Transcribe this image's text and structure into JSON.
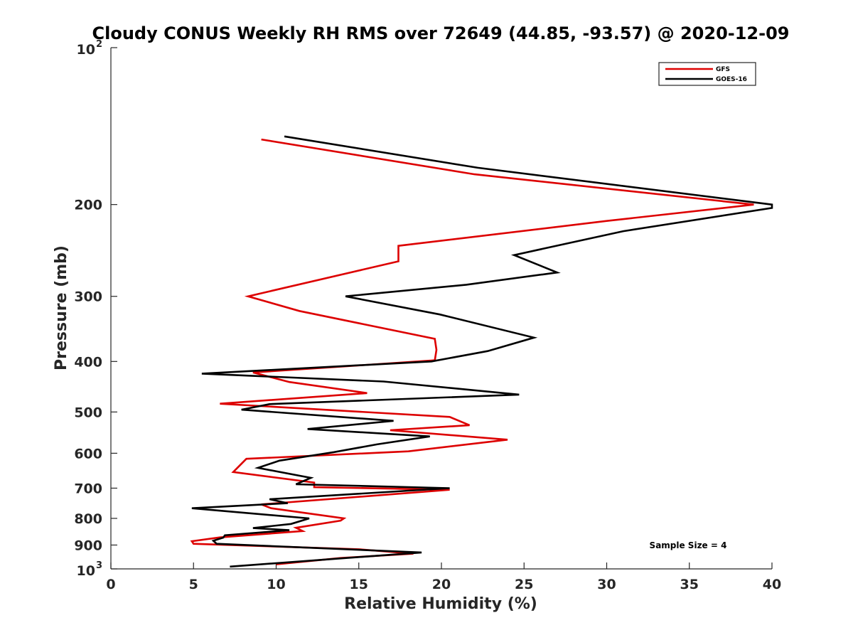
{
  "chart_data": {
    "type": "line",
    "title": "Cloudy CONUS Weekly RH RMS over 72649 (44.85, -93.57) @ 2020-12-09",
    "xlabel": "Relative Humidity (%)",
    "ylabel": "Pressure (mb)",
    "xlim": [
      0,
      40
    ],
    "ylim": [
      100,
      1000
    ],
    "y_scale": "log",
    "y_reversed": true,
    "x_ticks": [
      "0",
      "5",
      "10",
      "15",
      "20",
      "25",
      "30",
      "35",
      "40"
    ],
    "y_ticks": [
      {
        "value": 100,
        "label": "10",
        "exp": "2"
      },
      {
        "value": 200,
        "label": "200"
      },
      {
        "value": 300,
        "label": "300"
      },
      {
        "value": 400,
        "label": "400"
      },
      {
        "value": 500,
        "label": "500"
      },
      {
        "value": 600,
        "label": "600"
      },
      {
        "value": 700,
        "label": "700"
      },
      {
        "value": 800,
        "label": "800"
      },
      {
        "value": 900,
        "label": "900"
      },
      {
        "value": 1000,
        "label": "10",
        "exp": "3"
      }
    ],
    "legend_position": "top-right",
    "annotation": "Sample Size = 4",
    "series": [
      {
        "name": "GFS",
        "color": "#dd0000",
        "points": [
          [
            9.1,
            150
          ],
          [
            22.0,
            175
          ],
          [
            38.9,
            200
          ],
          [
            30.0,
            215
          ],
          [
            17.4,
            240
          ],
          [
            17.4,
            257
          ],
          [
            8.3,
            300
          ],
          [
            11.4,
            320
          ],
          [
            19.6,
            362
          ],
          [
            19.7,
            380
          ],
          [
            19.6,
            398
          ],
          [
            8.6,
            420
          ],
          [
            10.8,
            438
          ],
          [
            15.5,
            460
          ],
          [
            6.6,
            482
          ],
          [
            20.5,
            511
          ],
          [
            21.7,
            530
          ],
          [
            16.9,
            542
          ],
          [
            24.0,
            565
          ],
          [
            18.0,
            595
          ],
          [
            8.2,
            615
          ],
          [
            7.4,
            652
          ],
          [
            12.3,
            683
          ],
          [
            12.3,
            697
          ],
          [
            20.5,
            705
          ],
          [
            9.1,
            752
          ],
          [
            9.7,
            765
          ],
          [
            14.1,
            800
          ],
          [
            13.9,
            808
          ],
          [
            11.2,
            834
          ],
          [
            11.6,
            846
          ],
          [
            6.6,
            870
          ],
          [
            4.9,
            885
          ],
          [
            5.0,
            895
          ],
          [
            15.0,
            917
          ],
          [
            18.3,
            935
          ],
          [
            13.9,
            953
          ],
          [
            10.0,
            980
          ]
        ]
      },
      {
        "name": "GOES-16",
        "color": "#000000",
        "points": [
          [
            10.5,
            148
          ],
          [
            22.2,
            170
          ],
          [
            40.0,
            200
          ],
          [
            40.0,
            203
          ],
          [
            31.0,
            225
          ],
          [
            24.4,
            250
          ],
          [
            27.0,
            270
          ],
          [
            21.5,
            285
          ],
          [
            14.2,
            300
          ],
          [
            19.9,
            325
          ],
          [
            25.6,
            360
          ],
          [
            22.8,
            382
          ],
          [
            19.4,
            400
          ],
          [
            5.5,
            422
          ],
          [
            16.5,
            437
          ],
          [
            24.7,
            463
          ],
          [
            9.6,
            483
          ],
          [
            7.9,
            495
          ],
          [
            17.1,
            520
          ],
          [
            11.9,
            539
          ],
          [
            19.3,
            557
          ],
          [
            16.1,
            577
          ],
          [
            13.5,
            597
          ],
          [
            10.2,
            620
          ],
          [
            8.9,
            640
          ],
          [
            12.1,
            669
          ],
          [
            11.2,
            688
          ],
          [
            20.5,
            700
          ],
          [
            9.6,
            735
          ],
          [
            10.7,
            748
          ],
          [
            4.9,
            765
          ],
          [
            12.0,
            800
          ],
          [
            10.9,
            820
          ],
          [
            8.6,
            835
          ],
          [
            10.8,
            843
          ],
          [
            6.9,
            862
          ],
          [
            6.8,
            871
          ],
          [
            6.2,
            883
          ],
          [
            6.4,
            895
          ],
          [
            18.8,
            930
          ],
          [
            7.2,
            990
          ]
        ]
      }
    ]
  }
}
